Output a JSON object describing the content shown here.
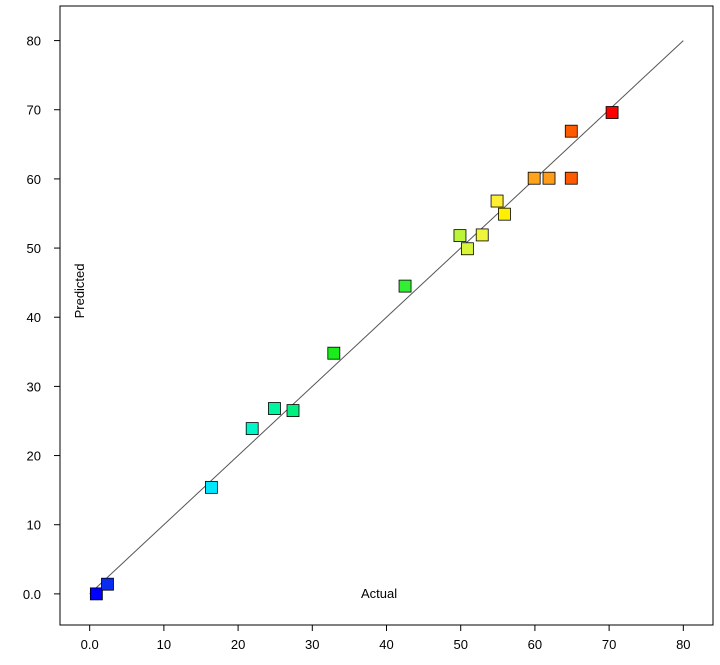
{
  "chart_data": {
    "type": "scatter",
    "title": "",
    "xlabel": "Actual",
    "ylabel": "Predicted",
    "xlim": [
      -4,
      84
    ],
    "ylim": [
      -4.5,
      85
    ],
    "xticks": [
      0.0,
      10,
      20,
      30,
      40,
      50,
      60,
      70,
      80
    ],
    "xtick_labels": [
      "0.0",
      "10",
      "20",
      "30",
      "40",
      "50",
      "60",
      "70",
      "80"
    ],
    "yticks": [
      0.0,
      10,
      20,
      30,
      40,
      50,
      60,
      70,
      80
    ],
    "ytick_labels": [
      "0.0",
      "10",
      "20",
      "30",
      "40",
      "50",
      "60",
      "70",
      "80"
    ],
    "grid": false,
    "reference_line": {
      "from": [
        0,
        0
      ],
      "to": [
        80,
        80
      ],
      "color": "#555555"
    },
    "points": [
      {
        "x": 0.9,
        "y": 0.0,
        "color": "#0000ff"
      },
      {
        "x": 2.4,
        "y": 1.4,
        "color": "#0a2cf0"
      },
      {
        "x": 16.4,
        "y": 15.4,
        "color": "#00e6ff"
      },
      {
        "x": 21.9,
        "y": 23.9,
        "color": "#00f5c8"
      },
      {
        "x": 24.9,
        "y": 26.8,
        "color": "#00f5a0"
      },
      {
        "x": 27.4,
        "y": 26.5,
        "color": "#00f080"
      },
      {
        "x": 32.9,
        "y": 34.8,
        "color": "#1aee1a"
      },
      {
        "x": 42.5,
        "y": 44.5,
        "color": "#33ee33"
      },
      {
        "x": 49.9,
        "y": 51.8,
        "color": "#bbf53a"
      },
      {
        "x": 50.9,
        "y": 49.9,
        "color": "#d8f53a"
      },
      {
        "x": 52.9,
        "y": 51.9,
        "color": "#eef53a"
      },
      {
        "x": 54.9,
        "y": 56.8,
        "color": "#ffee33"
      },
      {
        "x": 55.9,
        "y": 54.9,
        "color": "#fff000"
      },
      {
        "x": 59.9,
        "y": 60.1,
        "color": "#ffa31a"
      },
      {
        "x": 61.9,
        "y": 60.1,
        "color": "#ff9d1a"
      },
      {
        "x": 64.9,
        "y": 66.9,
        "color": "#ff5a00"
      },
      {
        "x": 64.9,
        "y": 60.1,
        "color": "#ff5a00"
      },
      {
        "x": 70.4,
        "y": 69.6,
        "color": "#ff0000"
      }
    ]
  }
}
